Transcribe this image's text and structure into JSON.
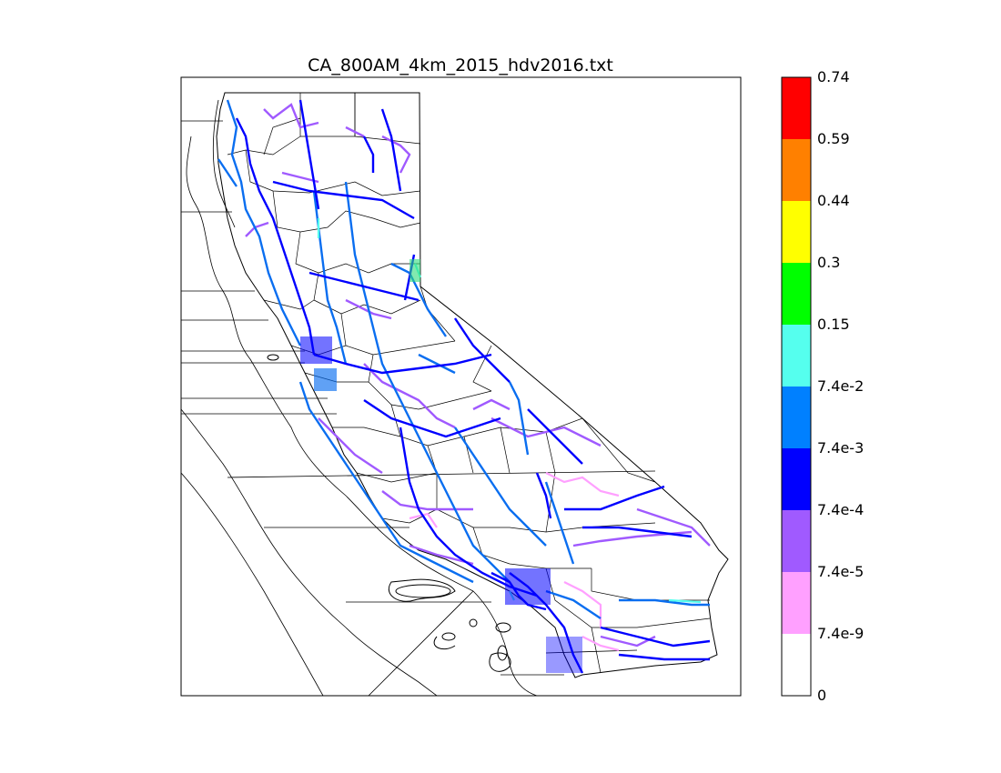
{
  "title": "CA_800AM_4km_2015_hdv2016.txt",
  "colorbar": {
    "labels": [
      "0",
      "7.4e-9",
      "7.4e-5",
      "7.4e-4",
      "7.4e-3",
      "7.4e-2",
      "0.15",
      "0.3",
      "0.44",
      "0.59",
      "0.74"
    ],
    "colors": [
      "#ffffff",
      "#ffa0ff",
      "#a05aff",
      "#0000ff",
      "#0080ff",
      "#55ffee",
      "#00ff00",
      "#ffff00",
      "#ff8000",
      "#ff0000"
    ]
  },
  "road_colors": {
    "major": "#0000ff",
    "medium": "#0a6ef0",
    "minor": "#a05aff",
    "trace": "#ffa0ff",
    "high": "#55ffee"
  }
}
